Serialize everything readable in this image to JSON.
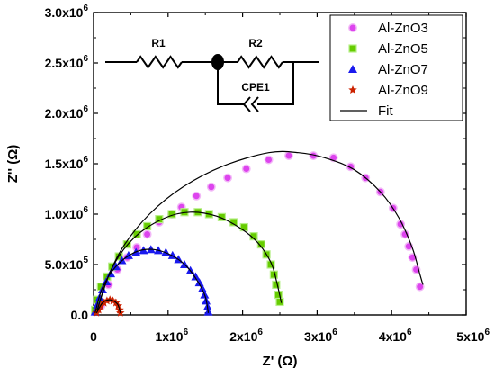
{
  "chart_data": {
    "type": "scatter",
    "xlabel": "Z' (Ω)",
    "ylabel": "Z'' (Ω)",
    "xlim": [
      0,
      5000000
    ],
    "ylim": [
      0,
      3000000
    ],
    "x_ticks": [
      {
        "value": 0,
        "label": "0"
      },
      {
        "value": 1000000,
        "label": "1x10",
        "exp": "6"
      },
      {
        "value": 2000000,
        "label": "2x10",
        "exp": "6"
      },
      {
        "value": 3000000,
        "label": "3x10",
        "exp": "6"
      },
      {
        "value": 4000000,
        "label": "4x10",
        "exp": "6"
      },
      {
        "value": 5000000,
        "label": "5x10",
        "exp": "6"
      }
    ],
    "y_ticks": [
      {
        "value": 0,
        "label": "0.0"
      },
      {
        "value": 500000,
        "label": "5.0x10",
        "exp": "5"
      },
      {
        "value": 1000000,
        "label": "1.0x10",
        "exp": "6"
      },
      {
        "value": 1500000,
        "label": "1.5x10",
        "exp": "6"
      },
      {
        "value": 2000000,
        "label": "2.0x10",
        "exp": "6"
      },
      {
        "value": 2500000,
        "label": "2.5x10",
        "exp": "6"
      },
      {
        "value": 3000000,
        "label": "3.0x10",
        "exp": "6"
      }
    ],
    "legend_position": "top-right",
    "grid": false,
    "series": [
      {
        "name": "Al-ZnO3",
        "marker": "circle",
        "color": "#dd44ee",
        "points": [
          [
            100000.0,
            90000.0
          ],
          [
            200000.0,
            300000.0
          ],
          [
            320000.0,
            450000.0
          ],
          [
            450000.0,
            570000.0
          ],
          [
            580000.0,
            670000.0
          ],
          [
            720000.0,
            800000.0
          ],
          [
            880000.0,
            920000.0
          ],
          [
            1050000.0,
            1000000.0
          ],
          [
            1180000.0,
            1070000.0
          ],
          [
            1380000.0,
            1180000.0
          ],
          [
            1580000.0,
            1270000.0
          ],
          [
            1800000.0,
            1360000.0
          ],
          [
            2050000.0,
            1450000.0
          ],
          [
            2350000.0,
            1540000.0
          ],
          [
            2620000.0,
            1580000.0
          ],
          [
            2950000.0,
            1580000.0
          ],
          [
            3220000.0,
            1560000.0
          ],
          [
            3450000.0,
            1470000.0
          ],
          [
            3650000.0,
            1360000.0
          ],
          [
            3850000.0,
            1220000.0
          ],
          [
            4020000.0,
            1060000.0
          ],
          [
            4120000.0,
            900000.0
          ],
          [
            4180000.0,
            800000.0
          ],
          [
            4230000.0,
            680000.0
          ],
          [
            4280000.0,
            570000.0
          ],
          [
            4330000.0,
            450000.0
          ],
          [
            4380000.0,
            280000.0
          ]
        ]
      },
      {
        "name": "Al-ZnO5",
        "marker": "square",
        "color": "#66cc00",
        "points": [
          [
            20000.0,
            50000.0
          ],
          [
            50000.0,
            150000.0
          ],
          [
            100000.0,
            280000.0
          ],
          [
            180000.0,
            380000.0
          ],
          [
            250000.0,
            480000.0
          ],
          [
            340000.0,
            580000.0
          ],
          [
            450000.0,
            700000.0
          ],
          [
            580000.0,
            800000.0
          ],
          [
            720000.0,
            880000.0
          ],
          [
            880000.0,
            950000.0
          ],
          [
            1050000.0,
            1000000.0
          ],
          [
            1220000.0,
            1020000.0
          ],
          [
            1400000.0,
            1020000.0
          ],
          [
            1550000.0,
            1000000.0
          ],
          [
            1720000.0,
            970000.0
          ],
          [
            1880000.0,
            920000.0
          ],
          [
            2020000.0,
            870000.0
          ],
          [
            2150000.0,
            780000.0
          ],
          [
            2250000.0,
            700000.0
          ],
          [
            2320000.0,
            600000.0
          ],
          [
            2380000.0,
            500000.0
          ],
          [
            2420000.0,
            400000.0
          ],
          [
            2450000.0,
            300000.0
          ],
          [
            2480000.0,
            200000.0
          ],
          [
            2500000.0,
            130000.0
          ]
        ]
      },
      {
        "name": "Al-ZnO7",
        "marker": "triangle",
        "color": "#1a1aee",
        "points": [
          [
            20000.0,
            30000.0
          ],
          [
            50000.0,
            100000.0
          ],
          [
            80000.0,
            170000.0
          ],
          [
            120000.0,
            250000.0
          ],
          [
            170000.0,
            330000.0
          ],
          [
            230000.0,
            410000.0
          ],
          [
            300000.0,
            480000.0
          ],
          [
            380000.0,
            540000.0
          ],
          [
            470000.0,
            590000.0
          ],
          [
            570000.0,
            620000.0
          ],
          [
            670000.0,
            640000.0
          ],
          [
            770000.0,
            650000.0
          ],
          [
            870000.0,
            640000.0
          ],
          [
            970000.0,
            620000.0
          ],
          [
            1060000.0,
            590000.0
          ],
          [
            1140000.0,
            550000.0
          ],
          [
            1220000.0,
            500000.0
          ],
          [
            1300000.0,
            440000.0
          ],
          [
            1370000.0,
            380000.0
          ],
          [
            1420000.0,
            320000.0
          ],
          [
            1460000.0,
            260000.0
          ],
          [
            1490000.0,
            200000.0
          ],
          [
            1510000.0,
            140000.0
          ],
          [
            1530000.0,
            80000.0
          ],
          [
            1540000.0,
            30000.0
          ]
        ]
      },
      {
        "name": "Al-ZnO9",
        "marker": "star",
        "color": "#cc2200",
        "points": [
          [
            40000.0,
            20000.0
          ],
          [
            70000.0,
            50000.0
          ],
          [
            100000.0,
            90000.0
          ],
          [
            140000.0,
            120000.0
          ],
          [
            180000.0,
            140000.0
          ],
          [
            220000.0,
            150000.0
          ],
          [
            260000.0,
            140000.0
          ],
          [
            300000.0,
            120000.0
          ],
          [
            330000.0,
            90000.0
          ],
          [
            350000.0,
            50000.0
          ],
          [
            360000.0,
            20000.0
          ]
        ]
      },
      {
        "name": "Fit",
        "marker": "line",
        "color": "#000000",
        "curves": [
          [
            [
              50000.0,
              50000.0
            ],
            [
              180000.0,
              350000.0
            ],
            [
              400000.0,
              680000.0
            ],
            [
              750000.0,
              1000000.0
            ],
            [
              1200000.0,
              1270000.0
            ],
            [
              1750000.0,
              1480000.0
            ],
            [
              2350000.0,
              1610000.0
            ],
            [
              2750000.0,
              1610000.0
            ],
            [
              3100000.0,
              1560000.0
            ],
            [
              3500000.0,
              1440000.0
            ],
            [
              3850000.0,
              1220000.0
            ],
            [
              4100000.0,
              960000.0
            ],
            [
              4280000.0,
              660000.0
            ],
            [
              4380000.0,
              400000.0
            ],
            [
              4420000.0,
              300000.0
            ]
          ],
          [
            [
              50000.0,
              50000.0
            ],
            [
              250000.0,
              470000.0
            ],
            [
              550000.0,
              770000.0
            ],
            [
              950000.0,
              960000.0
            ],
            [
              1300000.0,
              1020000.0
            ],
            [
              1650000.0,
              980000.0
            ],
            [
              1950000.0,
              870000.0
            ],
            [
              2200000.0,
              720000.0
            ],
            [
              2380000.0,
              520000.0
            ],
            [
              2460000.0,
              320000.0
            ],
            [
              2520000.0,
              120000.0
            ]
          ],
          [
            [
              20000.0,
              20000.0
            ],
            [
              120000.0,
              270000.0
            ],
            [
              300000.0,
              480000.0
            ],
            [
              550000.0,
              620000.0
            ],
            [
              800000.0,
              650000.0
            ],
            [
              1050000.0,
              590000.0
            ],
            [
              1250000.0,
              480000.0
            ],
            [
              1400000.0,
              330000.0
            ],
            [
              1500000.0,
              180000.0
            ],
            [
              1540000.0,
              20000.0
            ]
          ],
          [
            [
              40000.0,
              20000.0
            ],
            [
              120000.0,
              120000.0
            ],
            [
              220000.0,
              150000.0
            ],
            [
              320000.0,
              110000.0
            ],
            [
              360000.0,
              20000.0
            ]
          ]
        ]
      }
    ],
    "inset": {
      "labels": {
        "r1": "R1",
        "r2": "R2",
        "cpe": "CPE1"
      }
    }
  }
}
